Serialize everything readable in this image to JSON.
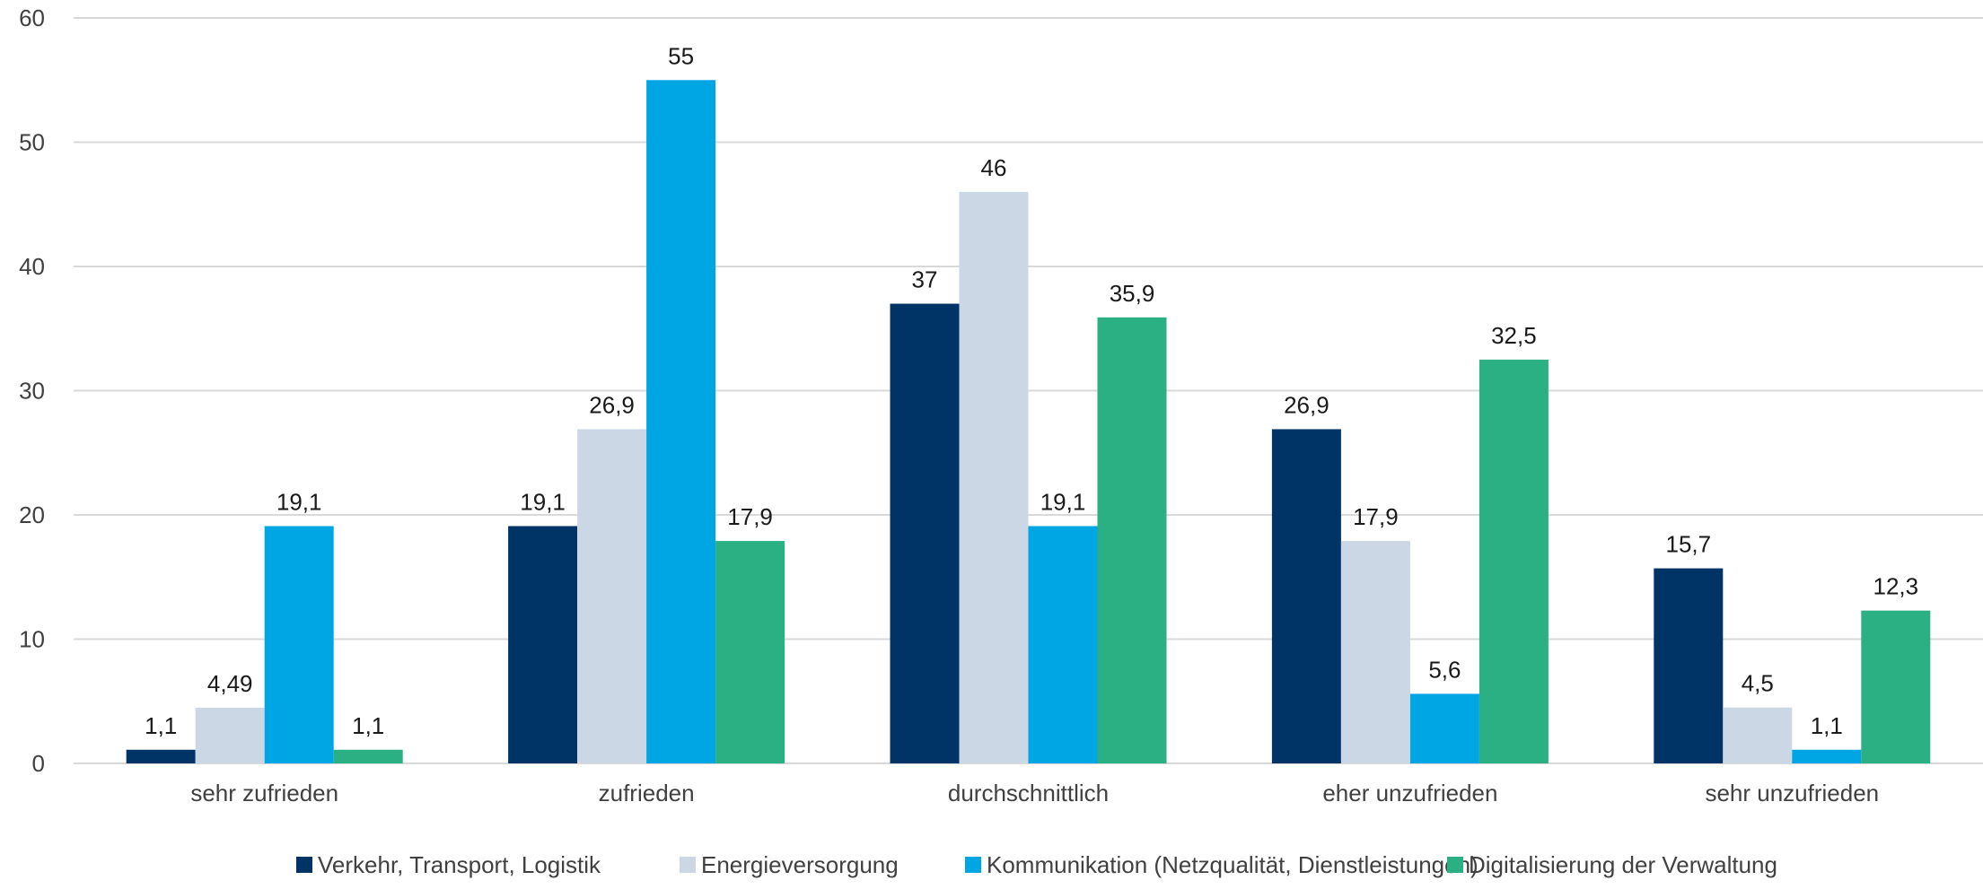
{
  "chart_data": {
    "type": "bar",
    "title": "",
    "xlabel": "",
    "ylabel": "",
    "ylim": [
      0,
      60
    ],
    "yticks": [
      0,
      10,
      20,
      30,
      40,
      50,
      60
    ],
    "grid": true,
    "legend_position": "bottom",
    "categories": [
      "sehr zufrieden",
      "zufrieden",
      "durchschnittlich",
      "eher unzufrieden",
      "sehr unzufrieden"
    ],
    "series": [
      {
        "name": "Verkehr, Transport, Logistik",
        "color": "#003366",
        "values": [
          1.1,
          19.1,
          37,
          26.9,
          15.7
        ],
        "labels": [
          "1,1",
          "19,1",
          "37",
          "26,9",
          "15,7"
        ]
      },
      {
        "name": "Energieversorgung",
        "color": "#ccd7e5",
        "values": [
          4.49,
          26.9,
          46,
          17.9,
          4.5
        ],
        "labels": [
          "4,49",
          "26,9",
          "46",
          "17,9",
          "4,5"
        ]
      },
      {
        "name": "Kommunikation (Netzqualität, Dienstleistungen)",
        "color": "#00a6e3",
        "values": [
          19.1,
          55,
          19.1,
          5.6,
          1.1
        ],
        "labels": [
          "19,1",
          "55",
          "19,1",
          "5,6",
          "1,1"
        ]
      },
      {
        "name": "Digitalisierung der Verwaltung",
        "color": "#2bb083",
        "values": [
          1.1,
          17.9,
          35.9,
          32.5,
          12.3
        ],
        "labels": [
          "1,1",
          "17,9",
          "35,9",
          "32,5",
          "12,3"
        ]
      }
    ]
  }
}
